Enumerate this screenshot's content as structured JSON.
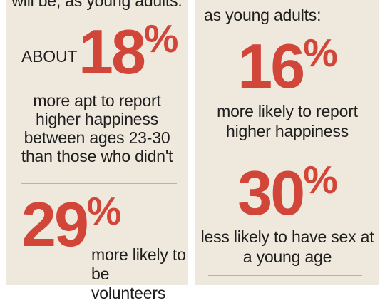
{
  "left": {
    "header": "will be, as young adults:",
    "stat1": {
      "prefix": "ABOUT",
      "value": "18",
      "unit": "%",
      "lines": [
        "more apt to report",
        "higher happiness",
        "between ages 23-30",
        "than those who didn't"
      ]
    },
    "stat2": {
      "value": "29",
      "unit": "%",
      "lines": [
        "more likely to",
        "be volunteers"
      ]
    }
  },
  "right": {
    "header": "as young adults:",
    "stat1": {
      "value": "16",
      "unit": "%",
      "lines": [
        "more likely to report",
        "higher happiness"
      ]
    },
    "stat2": {
      "value": "30",
      "unit": "%",
      "lines": [
        "less likely to have sex at",
        "a young age"
      ]
    }
  },
  "colors": {
    "accent": "#d2463a",
    "panel_bg": "#efe9dd",
    "text": "#1e1e1e"
  }
}
